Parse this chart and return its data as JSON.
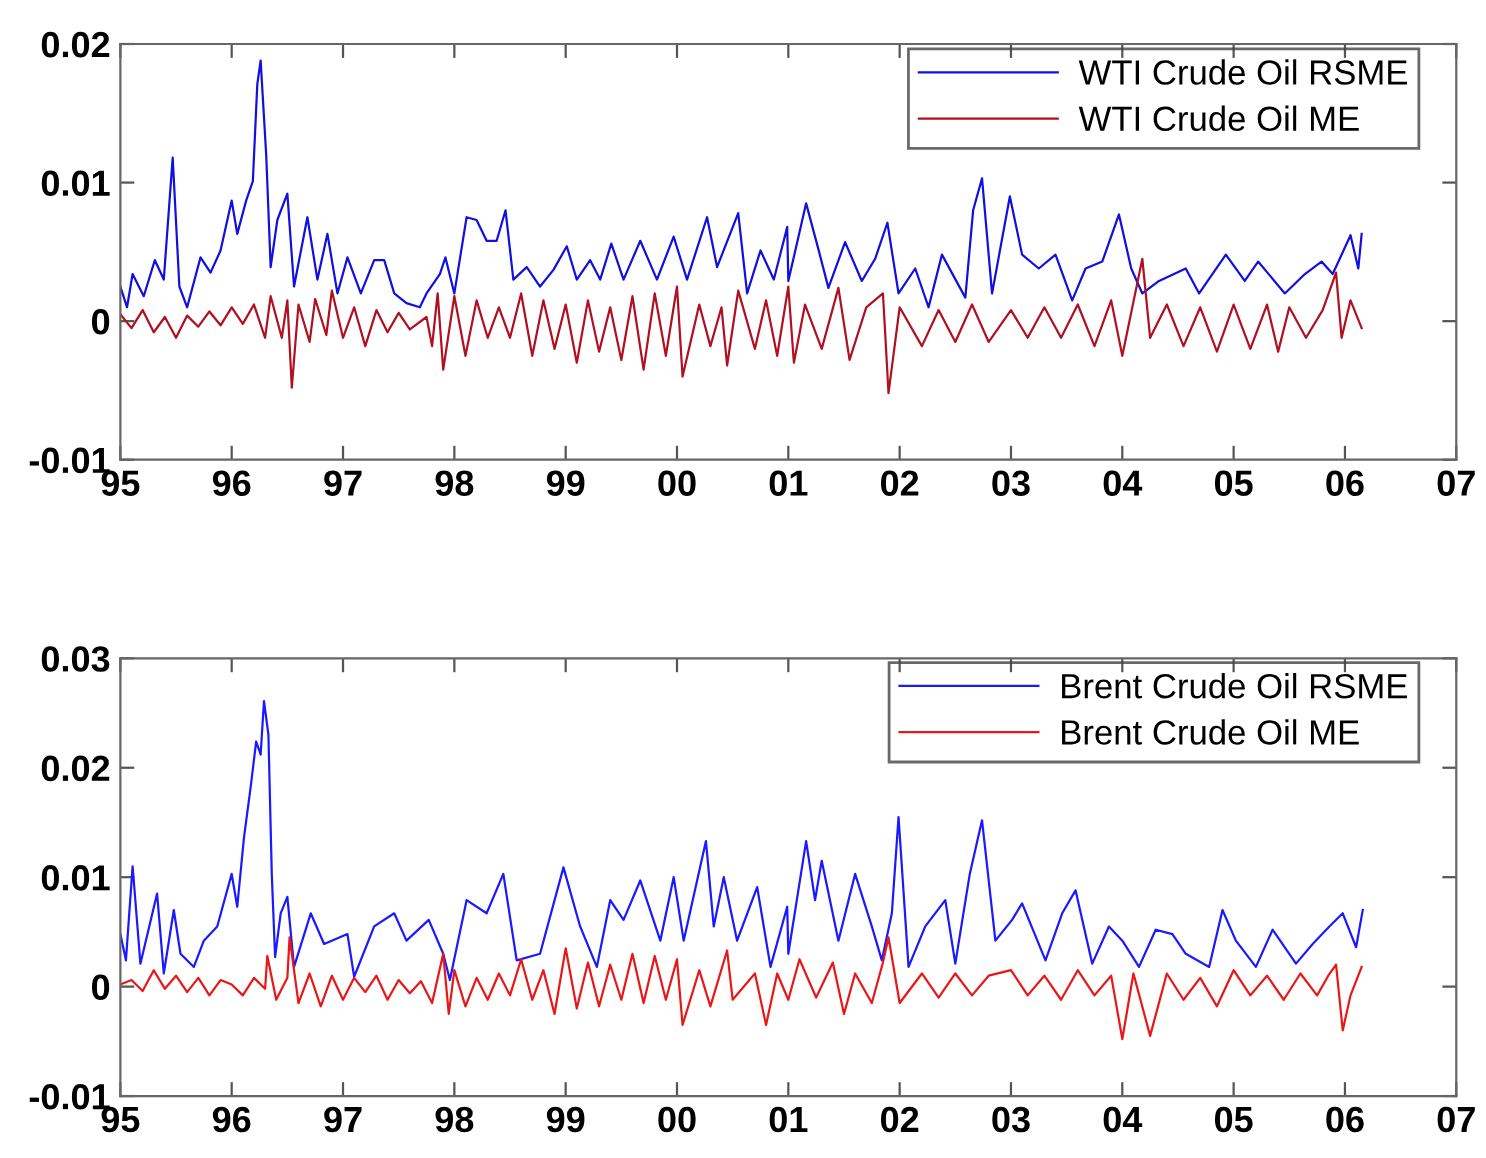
{
  "chart_data": [
    {
      "type": "line",
      "xlim": [
        1995,
        2007
      ],
      "xticks": [
        {
          "value": 1995,
          "label": "95"
        },
        {
          "value": 1996,
          "label": "96"
        },
        {
          "value": 1997,
          "label": "97"
        },
        {
          "value": 1998,
          "label": "98"
        },
        {
          "value": 1999,
          "label": "99"
        },
        {
          "value": 2000,
          "label": "00"
        },
        {
          "value": 2001,
          "label": "01"
        },
        {
          "value": 2002,
          "label": "02"
        },
        {
          "value": 2003,
          "label": "03"
        },
        {
          "value": 2004,
          "label": "04"
        },
        {
          "value": 2005,
          "label": "05"
        },
        {
          "value": 2006,
          "label": "06"
        },
        {
          "value": 2007,
          "label": "07"
        }
      ],
      "ylim": [
        -0.01,
        0.02
      ],
      "yticks": [
        -0.01,
        0,
        0.01,
        0.02
      ],
      "grid": false,
      "legend": "top right",
      "line_style": "solid",
      "marker": "none",
      "series": [
        {
          "name": "WTI Crude Oil RSME",
          "color": "#1010e0",
          "x": [
            1995.0,
            1995.06,
            1995.11,
            1995.21,
            1995.31,
            1995.39,
            1995.47,
            1995.53,
            1995.6,
            1995.72,
            1995.81,
            1995.9,
            1996.0,
            1996.05,
            1996.13,
            1996.19,
            1996.23,
            1996.26,
            1996.31,
            1996.35,
            1996.41,
            1996.5,
            1996.56,
            1996.68,
            1996.77,
            1996.86,
            1996.95,
            1997.04,
            1997.16,
            1997.28,
            1997.37,
            1997.46,
            1997.57,
            1997.69,
            1997.75,
            1997.87,
            1997.92,
            1998.0,
            1998.11,
            1998.2,
            1998.29,
            1998.38,
            1998.46,
            1998.53,
            1998.65,
            1998.77,
            1998.89,
            1999.01,
            1999.1,
            1999.22,
            1999.31,
            1999.41,
            1999.52,
            1999.67,
            1999.82,
            1999.97,
            2000.09,
            2000.27,
            2000.36,
            2000.55,
            2000.63,
            2000.75,
            2000.87,
            2000.99,
            2001.0,
            2001.16,
            2001.27,
            2001.36,
            2001.51,
            2001.66,
            2001.78,
            2001.89,
            2001.99,
            2002.14,
            2002.26,
            2002.38,
            2002.59,
            2002.66,
            2002.74,
            2002.83,
            2002.99,
            2003.1,
            2003.25,
            2003.4,
            2003.55,
            2003.67,
            2003.82,
            2003.97,
            2004.08,
            2004.18,
            2004.33,
            2004.57,
            2004.69,
            2004.93,
            2005.1,
            2005.22,
            2005.46,
            2005.64,
            2005.79,
            2005.89,
            2006.05,
            2006.12,
            2006.15
          ],
          "values": [
            0.0025,
            0.001,
            0.0034,
            0.0018,
            0.0044,
            0.003,
            0.0118,
            0.0025,
            0.001,
            0.0046,
            0.0035,
            0.0051,
            0.0087,
            0.0063,
            0.0087,
            0.0101,
            0.0171,
            0.0188,
            0.012,
            0.0039,
            0.0073,
            0.0092,
            0.0025,
            0.0075,
            0.003,
            0.0063,
            0.002,
            0.0046,
            0.002,
            0.0044,
            0.0044,
            0.002,
            0.0013,
            0.001,
            0.002,
            0.0034,
            0.0046,
            0.002,
            0.0075,
            0.0073,
            0.0058,
            0.0058,
            0.008,
            0.003,
            0.0039,
            0.0025,
            0.0037,
            0.0054,
            0.003,
            0.0044,
            0.003,
            0.0056,
            0.003,
            0.0058,
            0.003,
            0.0061,
            0.003,
            0.0075,
            0.0039,
            0.0078,
            0.002,
            0.0051,
            0.003,
            0.0068,
            0.0029,
            0.0085,
            0.0052,
            0.0024,
            0.0057,
            0.0029,
            0.0045,
            0.0071,
            0.002,
            0.0038,
            0.001,
            0.0048,
            0.0017,
            0.008,
            0.0103,
            0.002,
            0.009,
            0.0048,
            0.0038,
            0.0048,
            0.0015,
            0.0038,
            0.0043,
            0.0077,
            0.0038,
            0.002,
            0.0029,
            0.0038,
            0.002,
            0.0048,
            0.0029,
            0.0043,
            0.002,
            0.0034,
            0.0043,
            0.0034,
            0.0062,
            0.0038,
            0.0063
          ]
        },
        {
          "name": "WTI Crude Oil ME",
          "color": "#b01020",
          "x": [
            1995.0,
            1995.1,
            1995.2,
            1995.3,
            1995.4,
            1995.5,
            1995.6,
            1995.7,
            1995.8,
            1995.9,
            1996.0,
            1996.1,
            1996.2,
            1996.3,
            1996.35,
            1996.45,
            1996.5,
            1996.54,
            1996.6,
            1996.7,
            1996.75,
            1996.85,
            1996.9,
            1997.0,
            1997.1,
            1997.2,
            1997.3,
            1997.4,
            1997.5,
            1997.6,
            1997.75,
            1997.8,
            1997.85,
            1997.9,
            1998.0,
            1998.1,
            1998.2,
            1998.3,
            1998.4,
            1998.5,
            1998.6,
            1998.7,
            1998.8,
            1998.9,
            1999.0,
            1999.1,
            1999.2,
            1999.3,
            1999.4,
            1999.5,
            1999.6,
            1999.7,
            1999.8,
            1999.9,
            2000.0,
            2000.05,
            2000.2,
            2000.3,
            2000.4,
            2000.45,
            2000.55,
            2000.7,
            2000.8,
            2000.9,
            2001.0,
            2001.05,
            2001.15,
            2001.3,
            2001.45,
            2001.55,
            2001.7,
            2001.85,
            2001.9,
            2002.0,
            2002.2,
            2002.35,
            2002.5,
            2002.65,
            2002.8,
            2003.0,
            2003.15,
            2003.3,
            2003.45,
            2003.6,
            2003.75,
            2003.9,
            2004.0,
            2004.18,
            2004.25,
            2004.4,
            2004.55,
            2004.7,
            2004.85,
            2005.0,
            2005.15,
            2005.3,
            2005.4,
            2005.5,
            2005.65,
            2005.8,
            2005.92,
            2005.97,
            2006.05,
            2006.15
          ],
          "values": [
            0.0005,
            -0.0005,
            0.0008,
            -0.0008,
            0.0003,
            -0.0012,
            0.0004,
            -0.0004,
            0.0007,
            -0.0003,
            0.001,
            -0.0002,
            0.0012,
            -0.0012,
            0.0018,
            -0.0012,
            0.0015,
            -0.0048,
            0.0012,
            -0.0015,
            0.0016,
            -0.001,
            0.0022,
            -0.0012,
            0.001,
            -0.0018,
            0.0008,
            -0.0008,
            0.0006,
            -0.0006,
            0.0003,
            -0.0018,
            0.002,
            -0.0035,
            0.0018,
            -0.0025,
            0.0015,
            -0.0012,
            0.001,
            -0.0012,
            0.002,
            -0.0025,
            0.0015,
            -0.002,
            0.0012,
            -0.003,
            0.0015,
            -0.0022,
            0.001,
            -0.0028,
            0.0018,
            -0.0035,
            0.002,
            -0.0025,
            0.0025,
            -0.004,
            0.0012,
            -0.0018,
            0.001,
            -0.0032,
            0.0022,
            -0.002,
            0.0015,
            -0.0025,
            0.0025,
            -0.003,
            0.0012,
            -0.002,
            0.0024,
            -0.0028,
            0.001,
            0.002,
            -0.0052,
            0.001,
            -0.0018,
            0.0008,
            -0.0015,
            0.0012,
            -0.0015,
            0.0008,
            -0.0012,
            0.001,
            -0.0012,
            0.0012,
            -0.0018,
            0.0015,
            -0.0025,
            0.0045,
            -0.0012,
            0.0012,
            -0.0018,
            0.001,
            -0.0022,
            0.0012,
            -0.002,
            0.0012,
            -0.0022,
            0.001,
            -0.0012,
            0.0008,
            0.0035,
            -0.0012,
            0.0015,
            -0.0005
          ]
        }
      ]
    },
    {
      "type": "line",
      "xlim": [
        1995,
        2007
      ],
      "xticks": [
        {
          "value": 1995,
          "label": "95"
        },
        {
          "value": 1996,
          "label": "96"
        },
        {
          "value": 1997,
          "label": "97"
        },
        {
          "value": 1998,
          "label": "98"
        },
        {
          "value": 1999,
          "label": "99"
        },
        {
          "value": 2000,
          "label": "00"
        },
        {
          "value": 2001,
          "label": "01"
        },
        {
          "value": 2002,
          "label": "02"
        },
        {
          "value": 2003,
          "label": "03"
        },
        {
          "value": 2004,
          "label": "04"
        },
        {
          "value": 2005,
          "label": "05"
        },
        {
          "value": 2006,
          "label": "06"
        },
        {
          "value": 2007,
          "label": "07"
        }
      ],
      "ylim": [
        -0.01,
        0.03
      ],
      "yticks": [
        -0.01,
        0,
        0.01,
        0.02,
        0.03
      ],
      "grid": false,
      "legend": "top right",
      "line_style": "solid",
      "marker": "none",
      "series": [
        {
          "name": "Brent Crude Oil RSME",
          "color": "#1a1aff",
          "x": [
            1995.0,
            1995.05,
            1995.11,
            1995.18,
            1995.33,
            1995.39,
            1995.48,
            1995.54,
            1995.66,
            1995.75,
            1995.87,
            1996.0,
            1996.05,
            1996.11,
            1996.17,
            1996.22,
            1996.26,
            1996.29,
            1996.33,
            1996.36,
            1996.39,
            1996.44,
            1996.5,
            1996.56,
            1996.71,
            1996.83,
            1997.04,
            1997.1,
            1997.28,
            1997.46,
            1997.57,
            1997.77,
            1997.9,
            1997.96,
            1998.11,
            1998.29,
            1998.44,
            1998.56,
            1998.77,
            1998.98,
            1999.13,
            1999.28,
            1999.4,
            1999.52,
            1999.67,
            1999.85,
            1999.97,
            2000.06,
            2000.26,
            2000.33,
            2000.42,
            2000.54,
            2000.72,
            2000.84,
            2000.99,
            2001.0,
            2001.16,
            2001.24,
            2001.3,
            2001.45,
            2001.6,
            2001.75,
            2001.84,
            2001.93,
            2001.99,
            2002.08,
            2002.23,
            2002.41,
            2002.5,
            2002.63,
            2002.74,
            2002.86,
            2003.01,
            2003.1,
            2003.31,
            2003.46,
            2003.58,
            2003.73,
            2003.88,
            2004.0,
            2004.15,
            2004.3,
            2004.45,
            2004.57,
            2004.78,
            2004.9,
            2005.02,
            2005.2,
            2005.35,
            2005.56,
            2005.71,
            2005.86,
            2005.98,
            2006.1,
            2006.16
          ],
          "values": [
            0.0048,
            0.0024,
            0.011,
            0.0021,
            0.0085,
            0.0012,
            0.007,
            0.003,
            0.0018,
            0.0042,
            0.0055,
            0.0103,
            0.0073,
            0.0136,
            0.0182,
            0.0224,
            0.0212,
            0.0261,
            0.023,
            0.0103,
            0.0027,
            0.0067,
            0.0082,
            0.0018,
            0.0067,
            0.0039,
            0.0048,
            0.0009,
            0.0055,
            0.0067,
            0.0042,
            0.0061,
            0.003,
            0.0006,
            0.0079,
            0.0067,
            0.0103,
            0.0024,
            0.003,
            0.0109,
            0.0055,
            0.0018,
            0.0079,
            0.0061,
            0.0097,
            0.0042,
            0.01,
            0.0042,
            0.0133,
            0.0055,
            0.01,
            0.0042,
            0.0091,
            0.0018,
            0.0073,
            0.003,
            0.0133,
            0.0079,
            0.0115,
            0.0042,
            0.0103,
            0.0055,
            0.0024,
            0.0067,
            0.0155,
            0.0018,
            0.0055,
            0.0079,
            0.0021,
            0.0103,
            0.0152,
            0.0042,
            0.0061,
            0.0076,
            0.0024,
            0.0067,
            0.0088,
            0.0021,
            0.0055,
            0.0042,
            0.0018,
            0.0052,
            0.0048,
            0.003,
            0.0018,
            0.007,
            0.0042,
            0.0018,
            0.0052,
            0.0021,
            0.0039,
            0.0055,
            0.0067,
            0.0036,
            0.007
          ]
        },
        {
          "name": "Brent Crude Oil ME",
          "color": "#e81818",
          "x": [
            1995.0,
            1995.1,
            1995.2,
            1995.3,
            1995.4,
            1995.5,
            1995.6,
            1995.7,
            1995.8,
            1995.9,
            1996.0,
            1996.1,
            1996.2,
            1996.3,
            1996.32,
            1996.4,
            1996.5,
            1996.52,
            1996.6,
            1996.7,
            1996.8,
            1996.9,
            1997.0,
            1997.1,
            1997.2,
            1997.3,
            1997.4,
            1997.5,
            1997.6,
            1997.7,
            1997.8,
            1997.9,
            1997.95,
            1998.0,
            1998.1,
            1998.2,
            1998.3,
            1998.4,
            1998.5,
            1998.6,
            1998.7,
            1998.8,
            1998.9,
            1999.0,
            1999.1,
            1999.2,
            1999.3,
            1999.4,
            1999.5,
            1999.6,
            1999.7,
            1999.8,
            1999.9,
            2000.0,
            2000.05,
            2000.2,
            2000.3,
            2000.45,
            2000.5,
            2000.7,
            2000.8,
            2000.9,
            2001.0,
            2001.1,
            2001.25,
            2001.4,
            2001.5,
            2001.6,
            2001.75,
            2001.85,
            2001.9,
            2002.0,
            2002.2,
            2002.35,
            2002.5,
            2002.65,
            2002.8,
            2003.0,
            2003.15,
            2003.3,
            2003.45,
            2003.6,
            2003.75,
            2003.9,
            2004.0,
            2004.1,
            2004.25,
            2004.4,
            2004.55,
            2004.7,
            2004.85,
            2005.0,
            2005.15,
            2005.3,
            2005.45,
            2005.6,
            2005.75,
            2005.85,
            2005.92,
            2005.98,
            2006.05,
            2006.15
          ],
          "values": [
            0.0002,
            0.0006,
            -0.0004,
            0.0015,
            -0.0002,
            0.001,
            -0.0005,
            0.0008,
            -0.0008,
            0.0006,
            0.0002,
            -0.0008,
            0.0008,
            -0.0002,
            0.0028,
            -0.0012,
            0.0008,
            0.0045,
            -0.0015,
            0.0012,
            -0.0018,
            0.001,
            -0.0012,
            0.0008,
            -0.0005,
            0.001,
            -0.0012,
            0.0006,
            -0.0006,
            0.0005,
            -0.0015,
            0.003,
            -0.0025,
            0.0015,
            -0.0018,
            0.0008,
            -0.0012,
            0.0012,
            -0.0008,
            0.0025,
            -0.0012,
            0.0015,
            -0.0025,
            0.0035,
            -0.002,
            0.0022,
            -0.0018,
            0.002,
            -0.0012,
            0.003,
            -0.0015,
            0.0028,
            -0.0012,
            0.0025,
            -0.0035,
            0.0015,
            -0.0018,
            0.0033,
            -0.0012,
            0.0012,
            -0.0035,
            0.0012,
            -0.0012,
            0.0025,
            -0.001,
            0.0022,
            -0.0025,
            0.0012,
            -0.0015,
            0.0022,
            0.0045,
            -0.0015,
            0.0012,
            -0.001,
            0.0012,
            -0.0008,
            0.001,
            0.0015,
            -0.0008,
            0.001,
            -0.0012,
            0.0015,
            -0.0008,
            0.001,
            -0.0048,
            0.0012,
            -0.0045,
            0.0012,
            -0.0012,
            0.0008,
            -0.0018,
            0.0015,
            -0.0008,
            0.001,
            -0.0012,
            0.0012,
            -0.0008,
            0.001,
            0.002,
            -0.004,
            -0.0008,
            0.0018
          ]
        }
      ]
    }
  ]
}
